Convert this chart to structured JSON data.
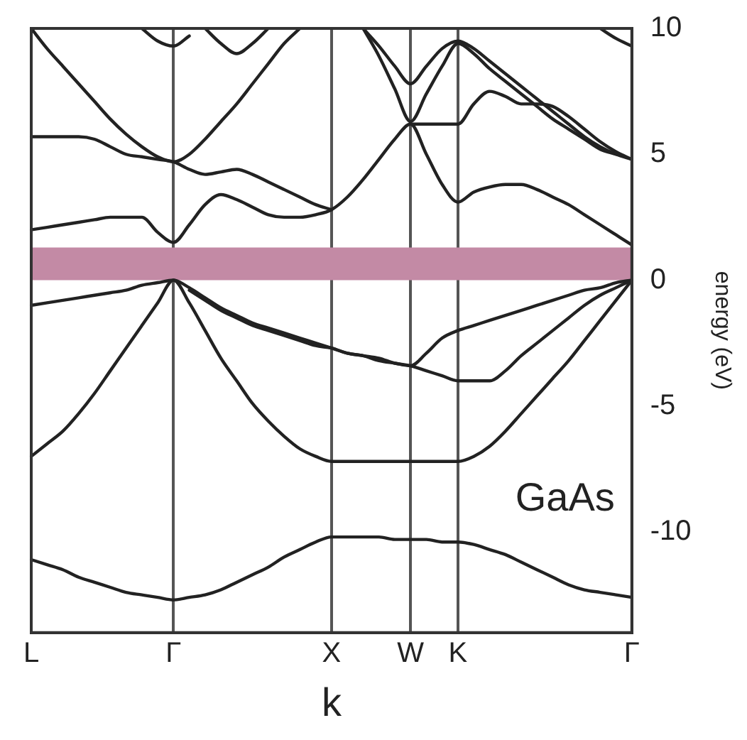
{
  "chart_data": {
    "type": "line",
    "xlabel": "k",
    "ylabel": "energy (eV)",
    "annotations": [
      "GaAs"
    ],
    "categories": [
      "L",
      null,
      null,
      null,
      null,
      null,
      null,
      null,
      null,
      "Γ",
      null,
      null,
      null,
      null,
      null,
      null,
      null,
      null,
      null,
      "X",
      null,
      null,
      null,
      null,
      "W",
      null,
      null,
      "K",
      null,
      null,
      null,
      null,
      null,
      null,
      null,
      null,
      null,
      null,
      "Γ"
    ],
    "ylim": [
      -14,
      10
    ],
    "yticks": [
      10,
      5,
      0,
      -5,
      -10
    ],
    "grid": "x",
    "legend": false,
    "marker": "none",
    "line_style": "solid",
    "bands": [
      {
        "axis": "y",
        "from": 0,
        "to": 1.3,
        "color": "#c38aa5"
      }
    ],
    "series": [
      {
        "color": "#222222",
        "values": [
          -11.1,
          -11.3,
          -11.5,
          -11.8,
          -12.0,
          -12.2,
          -12.4,
          -12.5,
          -12.6,
          -12.7,
          -12.6,
          -12.5,
          -12.3,
          -12.0,
          -11.7,
          -11.4,
          -11.0,
          -10.7,
          -10.4,
          -10.2,
          -10.2,
          -10.2,
          -10.2,
          -10.3,
          -10.3,
          -10.3,
          -10.4,
          -10.4,
          -10.5,
          -10.7,
          -10.9,
          -11.2,
          -11.5,
          -11.8,
          -12.1,
          -12.3,
          -12.4,
          -12.5,
          -12.6
        ]
      },
      {
        "color": "#222222",
        "values": [
          -7.0,
          -6.5,
          -6.0,
          -5.3,
          -4.5,
          -3.6,
          -2.7,
          -1.8,
          -0.9,
          0,
          -0.9,
          -2.0,
          -3.1,
          -4.0,
          -4.9,
          -5.6,
          -6.2,
          -6.7,
          -7.0,
          -7.2,
          -7.2,
          -7.2,
          -7.2,
          -7.2,
          -7.2,
          -7.2,
          -7.2,
          -7.2,
          -7.0,
          -6.6,
          -6.0,
          -5.3,
          -4.6,
          -3.9,
          -3.2,
          -2.4,
          -1.6,
          -0.8,
          0
        ]
      },
      {
        "color": "#222222",
        "values": [
          -1.0,
          -0.9,
          -0.8,
          -0.7,
          -0.6,
          -0.5,
          -0.4,
          -0.2,
          -0.1,
          0,
          -0.3,
          -0.7,
          -1.1,
          -1.4,
          -1.7,
          -1.9,
          -2.1,
          -2.3,
          -2.5,
          -2.7,
          -2.9,
          -3.0,
          -3.1,
          -3.3,
          -3.4,
          -3.6,
          -3.8,
          -4.0,
          -4.0,
          -4.0,
          -3.6,
          -3.0,
          -2.5,
          -2.0,
          -1.5,
          -1.0,
          -0.6,
          -0.3,
          0
        ]
      },
      {
        "color": "#222222",
        "values": [
          null,
          null,
          null,
          null,
          null,
          null,
          null,
          null,
          null,
          null,
          -0.4,
          -0.8,
          -1.2,
          -1.5,
          -1.8,
          -2.0,
          -2.2,
          -2.4,
          -2.6,
          -2.7,
          -2.9,
          -3.0,
          -3.2,
          -3.3,
          -3.4,
          -2.9,
          -2.3,
          -2.0,
          -1.8,
          -1.6,
          -1.4,
          -1.2,
          -1.0,
          -0.8,
          -0.6,
          -0.4,
          -0.3,
          -0.1,
          0
        ]
      },
      {
        "color": "#222222",
        "values": [
          2.0,
          2.1,
          2.2,
          2.3,
          2.4,
          2.5,
          2.5,
          2.5,
          1.9,
          1.5,
          2.2,
          3.0,
          3.4,
          3.2,
          2.9,
          2.6,
          2.5,
          2.5,
          2.6,
          2.8,
          3.3,
          4.0,
          4.8,
          5.6,
          6.2,
          5.0,
          3.8,
          3.1,
          3.5,
          3.7,
          3.8,
          3.8,
          3.6,
          3.3,
          3.0,
          2.6,
          2.2,
          1.8,
          1.4
        ]
      },
      {
        "color": "#222222",
        "values": [
          5.7,
          5.7,
          5.7,
          5.7,
          5.6,
          5.3,
          5.0,
          4.9,
          4.8,
          4.7,
          4.4,
          4.2,
          4.3,
          4.4,
          4.2,
          3.9,
          3.6,
          3.3,
          3.0,
          2.8,
          null,
          null,
          null,
          null,
          6.2,
          6.2,
          6.2,
          6.2,
          7.0,
          7.5,
          7.3,
          7.0,
          7.0,
          6.9,
          6.5,
          6.0,
          5.5,
          5.1,
          4.8
        ]
      },
      {
        "color": "#222222",
        "values": [
          10.0,
          9.2,
          8.5,
          7.8,
          7.1,
          6.4,
          5.8,
          5.3,
          4.9,
          4.7,
          5.0,
          5.6,
          6.3,
          7.0,
          7.8,
          8.6,
          9.4,
          10.0,
          null,
          null,
          null,
          null,
          null,
          null,
          null,
          null,
          null,
          null,
          null,
          null,
          null,
          null,
          null,
          null,
          null,
          null,
          null,
          null,
          null
        ]
      },
      {
        "color": "#222222",
        "values": [
          null,
          null,
          null,
          null,
          null,
          null,
          null,
          10.0,
          9.5,
          9.3,
          9.7,
          null,
          null,
          null,
          null,
          null,
          null,
          null,
          null,
          null,
          null,
          null,
          null,
          null,
          null,
          null,
          null,
          null,
          null,
          null,
          null,
          null,
          null,
          null,
          null,
          null,
          null,
          null,
          null
        ]
      },
      {
        "color": "#222222",
        "values": [
          null,
          null,
          null,
          null,
          null,
          null,
          null,
          null,
          null,
          null,
          null,
          10.0,
          9.4,
          9.0,
          9.4,
          10.0,
          null,
          null,
          null,
          null,
          null,
          null,
          null,
          null,
          null,
          null,
          null,
          null,
          null,
          null,
          null,
          null,
          null,
          null,
          null,
          null,
          null,
          null,
          null
        ]
      },
      {
        "color": "#222222",
        "values": [
          null,
          null,
          null,
          null,
          null,
          null,
          null,
          null,
          null,
          null,
          null,
          null,
          null,
          null,
          null,
          null,
          null,
          null,
          null,
          null,
          null,
          10.0,
          9.3,
          8.5,
          7.8,
          8.5,
          9.2,
          9.5,
          9.2,
          8.7,
          8.2,
          7.7,
          7.2,
          6.7,
          6.2,
          5.7,
          5.3,
          5.0,
          4.8
        ]
      },
      {
        "color": "#222222",
        "values": [
          null,
          null,
          null,
          null,
          null,
          null,
          null,
          null,
          null,
          null,
          null,
          null,
          null,
          null,
          null,
          null,
          null,
          null,
          null,
          null,
          null,
          10.0,
          8.9,
          7.6,
          6.3,
          7.4,
          8.5,
          9.4,
          9.0,
          8.4,
          7.9,
          7.4,
          6.9,
          6.4,
          6.0,
          5.6,
          5.2,
          5.0,
          null
        ]
      },
      {
        "color": "#222222",
        "values": [
          null,
          null,
          null,
          null,
          null,
          null,
          null,
          null,
          null,
          null,
          null,
          null,
          null,
          null,
          null,
          null,
          null,
          null,
          null,
          null,
          null,
          null,
          null,
          null,
          null,
          null,
          null,
          null,
          null,
          null,
          null,
          null,
          null,
          null,
          null,
          null,
          10.0,
          9.6,
          9.3
        ]
      }
    ]
  }
}
